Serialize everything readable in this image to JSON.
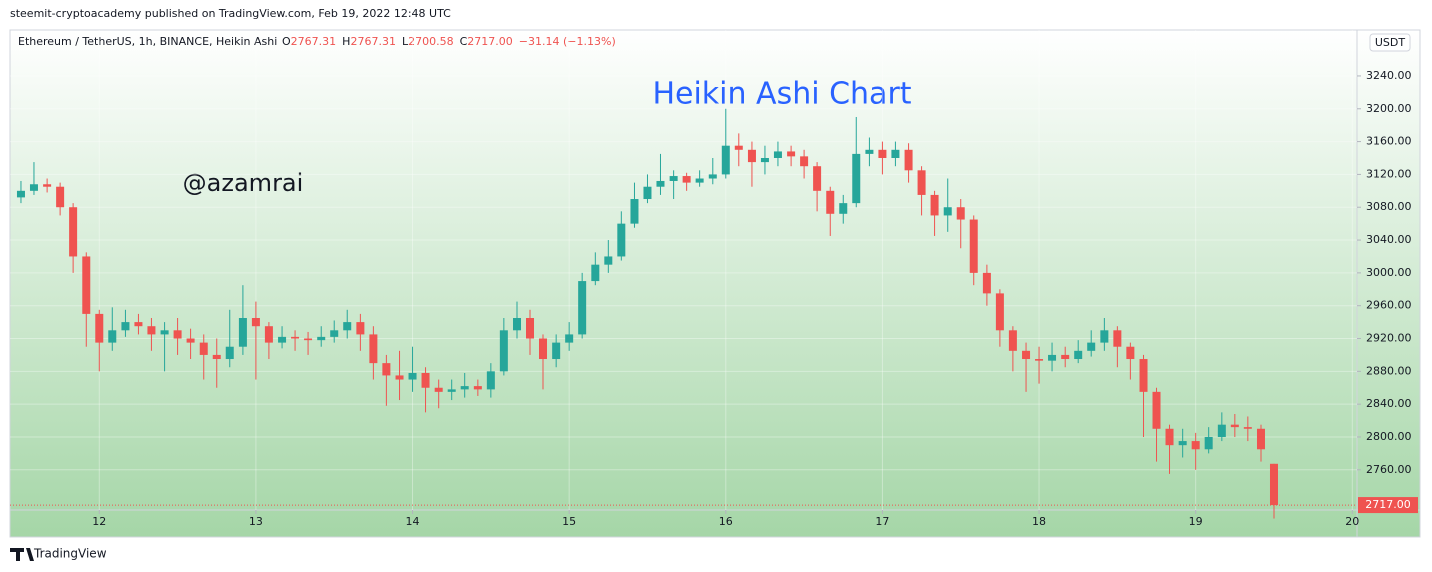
{
  "page": {
    "publisher": "steemit-cryptoacademy published on TradingView.com, Feb 19, 2022 12:48 UTC",
    "footer": "TradingView"
  },
  "chart_data": {
    "type": "candlestick",
    "symbol": "Ethereum / TetherUS, 1h, BINANCE, Heikin Ashi",
    "header": [
      {
        "label": "O",
        "value": "2767.31"
      },
      {
        "label": "H",
        "value": "2767.31"
      },
      {
        "label": "L",
        "value": "2700.58"
      },
      {
        "label": "C",
        "value": "2717.00"
      }
    ],
    "change": "−31.14 (−1.13%)",
    "currency": "USDT",
    "annotations": [
      "Heikin Ashi Chart",
      "@azamrai"
    ],
    "up_color": "#26a69a",
    "down_color": "#ef5350",
    "last_price": {
      "value": 2717,
      "label": "2717.00"
    },
    "xlim": [
      11.43,
      20.03
    ],
    "xticks": [
      12,
      13,
      14,
      15,
      16,
      17,
      18,
      19,
      20
    ],
    "ylim": [
      2711,
      3296
    ],
    "yticks": [
      {
        "value": 2760,
        "label": "2760.00"
      },
      {
        "value": 2800,
        "label": "2800.00"
      },
      {
        "value": 2840,
        "label": "2840.00"
      },
      {
        "value": 2880,
        "label": "2880.00"
      },
      {
        "value": 2920,
        "label": "2920.00"
      },
      {
        "value": 2960,
        "label": "2960.00"
      },
      {
        "value": 3000,
        "label": "3000.00"
      },
      {
        "value": 3040,
        "label": "3040.00"
      },
      {
        "value": 3080,
        "label": "3080.00"
      },
      {
        "value": 3120,
        "label": "3120.00"
      },
      {
        "value": 3160,
        "label": "3160.00"
      },
      {
        "value": 3200,
        "label": "3200.00"
      },
      {
        "value": 3240,
        "label": "3240.00"
      }
    ],
    "x": [
      11.5,
      11.583,
      11.667,
      11.75,
      11.833,
      11.917,
      12,
      12.083,
      12.167,
      12.25,
      12.333,
      12.417,
      12.5,
      12.583,
      12.667,
      12.75,
      12.833,
      12.917,
      13,
      13.083,
      13.167,
      13.25,
      13.333,
      13.417,
      13.5,
      13.583,
      13.667,
      13.75,
      13.833,
      13.917,
      14,
      14.083,
      14.167,
      14.25,
      14.333,
      14.417,
      14.5,
      14.583,
      14.667,
      14.75,
      14.833,
      14.917,
      15,
      15.083,
      15.167,
      15.25,
      15.333,
      15.417,
      15.5,
      15.583,
      15.667,
      15.75,
      15.833,
      15.917,
      16,
      16.083,
      16.167,
      16.25,
      16.333,
      16.417,
      16.5,
      16.583,
      16.667,
      16.75,
      16.833,
      16.917,
      17,
      17.083,
      17.167,
      17.25,
      17.333,
      17.417,
      17.5,
      17.583,
      17.667,
      17.75,
      17.833,
      17.917,
      18,
      18.083,
      18.167,
      18.25,
      18.333,
      18.417,
      18.5,
      18.583,
      18.667,
      18.75,
      18.833,
      18.917,
      19,
      19.083,
      19.167,
      19.25,
      19.333,
      19.417,
      19.5
    ],
    "open": [
      3092,
      3100,
      3108,
      3105,
      3080,
      3020,
      2950,
      2915,
      2930,
      2940,
      2935,
      2925,
      2930,
      2920,
      2915,
      2900,
      2895,
      2910,
      2945,
      2935,
      2915,
      2922,
      2920,
      2918,
      2922,
      2930,
      2940,
      2925,
      2890,
      2875,
      2870,
      2878,
      2860,
      2855,
      2858,
      2862,
      2858,
      2880,
      2930,
      2945,
      2920,
      2895,
      2915,
      2925,
      2990,
      3010,
      3020,
      3060,
      3090,
      3105,
      3112,
      3118,
      3110,
      3115,
      3120,
      3155,
      3150,
      3135,
      3140,
      3148,
      3142,
      3130,
      3100,
      3072,
      3085,
      3145,
      3150,
      3140,
      3150,
      3125,
      3095,
      3070,
      3080,
      3065,
      3000,
      2975,
      2930,
      2905,
      2895,
      2893,
      2900,
      2895,
      2905,
      2915,
      2930,
      2910,
      2895,
      2855,
      2810,
      2790,
      2795,
      2785,
      2800,
      2815,
      2812,
      2810,
      2767.31
    ],
    "high": [
      3112,
      3135,
      3115,
      3110,
      3085,
      3025,
      2955,
      2958,
      2955,
      2950,
      2945,
      2940,
      2945,
      2932,
      2925,
      2920,
      2955,
      2985,
      2965,
      2940,
      2935,
      2930,
      2928,
      2935,
      2942,
      2955,
      2950,
      2935,
      2900,
      2905,
      2910,
      2885,
      2870,
      2870,
      2878,
      2870,
      2890,
      2945,
      2965,
      2955,
      2925,
      2925,
      2940,
      3000,
      3025,
      3040,
      3075,
      3110,
      3120,
      3145,
      3125,
      3122,
      3125,
      3140,
      3200,
      3170,
      3160,
      3155,
      3160,
      3155,
      3150,
      3135,
      3105,
      3095,
      3190,
      3165,
      3160,
      3160,
      3158,
      3130,
      3100,
      3115,
      3090,
      3070,
      3010,
      2980,
      2935,
      2915,
      2910,
      2915,
      2910,
      2918,
      2930,
      2945,
      2935,
      2915,
      2900,
      2860,
      2815,
      2810,
      2805,
      2812,
      2830,
      2828,
      2825,
      2815,
      2767.31
    ],
    "low": [
      3085,
      3095,
      3098,
      3070,
      3000,
      2910,
      2880,
      2905,
      2922,
      2925,
      2905,
      2880,
      2900,
      2895,
      2870,
      2860,
      2885,
      2900,
      2870,
      2895,
      2908,
      2905,
      2900,
      2910,
      2915,
      2920,
      2905,
      2870,
      2838,
      2845,
      2855,
      2830,
      2835,
      2845,
      2848,
      2850,
      2848,
      2875,
      2920,
      2900,
      2858,
      2885,
      2905,
      2920,
      2985,
      3000,
      3015,
      3055,
      3085,
      3095,
      3090,
      3100,
      3105,
      3108,
      3115,
      3130,
      3105,
      3120,
      3130,
      3130,
      3115,
      3075,
      3045,
      3060,
      3080,
      3130,
      3120,
      3130,
      3110,
      3070,
      3045,
      3050,
      3030,
      2985,
      2960,
      2910,
      2880,
      2855,
      2865,
      2880,
      2885,
      2890,
      2898,
      2905,
      2885,
      2870,
      2800,
      2770,
      2755,
      2775,
      2760,
      2780,
      2795,
      2800,
      2795,
      2770,
      2700.58
    ],
    "close": [
      3100,
      3108,
      3105,
      3080,
      3020,
      2950,
      2915,
      2930,
      2940,
      2935,
      2925,
      2930,
      2920,
      2915,
      2900,
      2895,
      2910,
      2945,
      2935,
      2915,
      2922,
      2920,
      2918,
      2922,
      2930,
      2940,
      2925,
      2890,
      2875,
      2870,
      2878,
      2860,
      2855,
      2858,
      2862,
      2858,
      2880,
      2930,
      2945,
      2920,
      2895,
      2915,
      2925,
      2990,
      3010,
      3020,
      3060,
      3090,
      3105,
      3112,
      3118,
      3110,
      3115,
      3120,
      3155,
      3150,
      3135,
      3140,
      3148,
      3142,
      3130,
      3100,
      3072,
      3085,
      3145,
      3150,
      3140,
      3150,
      3125,
      3095,
      3070,
      3080,
      3065,
      3000,
      2975,
      2930,
      2905,
      2895,
      2893,
      2900,
      2895,
      2905,
      2915,
      2930,
      2910,
      2895,
      2855,
      2810,
      2790,
      2795,
      2785,
      2800,
      2815,
      2812,
      2810,
      2785,
      2717
    ]
  }
}
